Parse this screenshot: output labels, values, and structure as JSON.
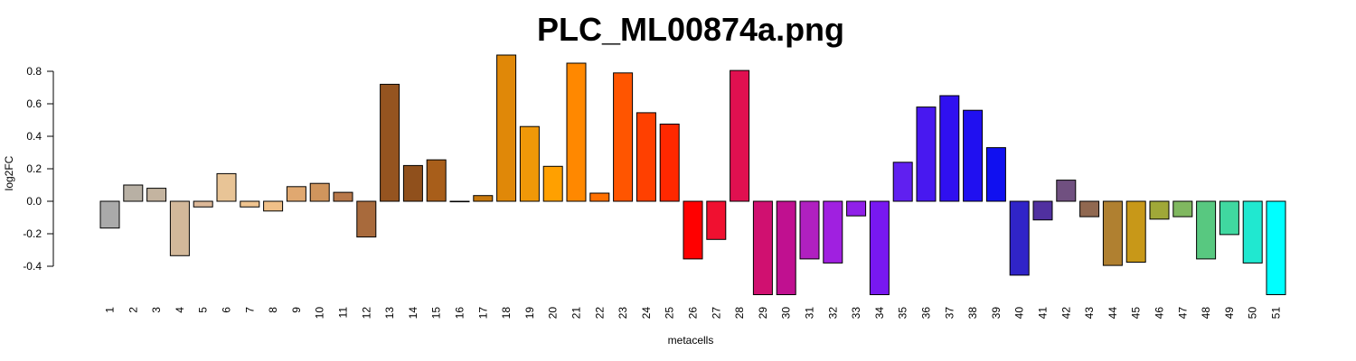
{
  "chart_data": {
    "type": "bar",
    "title": "PLC_ML00874a.png",
    "xlabel": "metacells",
    "ylabel": "log2FC",
    "ylim": [
      -0.575,
      0.91
    ],
    "yticks": [
      -0.4,
      -0.2,
      0.0,
      0.2,
      0.4,
      0.6,
      0.8
    ],
    "ytick_labels": [
      "-0.4",
      "-0.2",
      "0.0",
      "0.2",
      "0.4",
      "0.6",
      "0.8"
    ],
    "grid": false,
    "categories": [
      "1",
      "2",
      "3",
      "4",
      "5",
      "6",
      "7",
      "8",
      "9",
      "10",
      "11",
      "12",
      "13",
      "14",
      "15",
      "16",
      "17",
      "18",
      "19",
      "20",
      "21",
      "22",
      "23",
      "24",
      "25",
      "26",
      "27",
      "28",
      "29",
      "30",
      "31",
      "32",
      "33",
      "34",
      "35",
      "36",
      "37",
      "38",
      "39",
      "40",
      "41",
      "42",
      "43",
      "44",
      "45",
      "46",
      "47",
      "48",
      "49",
      "50",
      "51"
    ],
    "values": [
      -0.165,
      0.1,
      0.08,
      -0.335,
      -0.035,
      0.17,
      -0.035,
      -0.06,
      0.09,
      0.11,
      0.055,
      -0.22,
      0.72,
      0.22,
      0.255,
      -0.003,
      0.035,
      0.9,
      0.46,
      0.215,
      0.85,
      0.05,
      0.79,
      0.545,
      0.475,
      -0.355,
      -0.235,
      0.805,
      -0.575,
      -0.575,
      -0.355,
      -0.38,
      -0.09,
      -0.575,
      0.24,
      0.58,
      0.65,
      0.56,
      0.33,
      -0.455,
      -0.115,
      0.13,
      -0.095,
      -0.395,
      -0.375,
      -0.11,
      -0.095,
      -0.355,
      -0.205,
      -0.38,
      -0.575
    ],
    "colors": [
      "#aaaaaa",
      "#b8b0a4",
      "#c4b4a0",
      "#d2b89a",
      "#dcb898",
      "#e8c496",
      "#efc490",
      "#f0c088",
      "#e0a870",
      "#d0955d",
      "#b8784a",
      "#a86a3c",
      "#955420",
      "#90501c",
      "#a85e1a",
      "#8a5518",
      "#c8780c",
      "#e08808",
      "#f09808",
      "#ffa000",
      "#ff8800",
      "#ff7000",
      "#ff5500",
      "#ff4000",
      "#ff2800",
      "#ff0000",
      "#f01030",
      "#e01050",
      "#d01070",
      "#c01090",
      "#b020c0",
      "#a020e0",
      "#9020e8",
      "#7818f0",
      "#6020f0",
      "#4818f0",
      "#3010f0",
      "#2010f0",
      "#1010f0",
      "#3024c8",
      "#5030a0",
      "#705080",
      "#906850",
      "#b08030",
      "#c89818",
      "#a0a838",
      "#80b860",
      "#58c880",
      "#40d8a0",
      "#20e8d0",
      "#00ffff"
    ]
  }
}
